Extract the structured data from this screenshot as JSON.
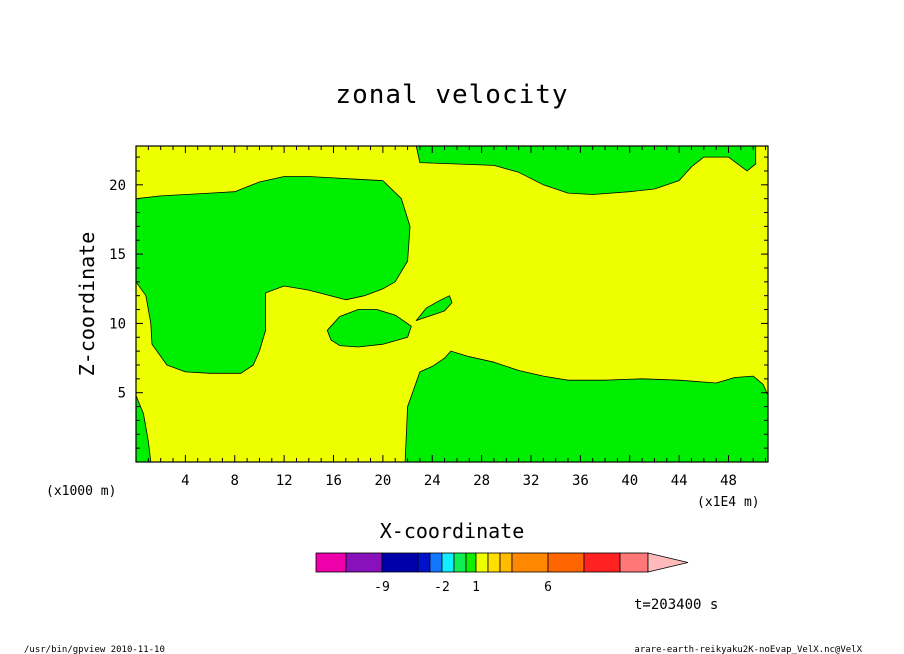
{
  "chart_data": {
    "type": "heatmap",
    "title": "zonal velocity",
    "xlabel": "X-coordinate",
    "ylabel": "Z-coordinate",
    "x_unit": "(x1E4 m)",
    "y_unit": "(x1000 m)",
    "xlim": [
      0,
      51.2
    ],
    "ylim": [
      0,
      22.8
    ],
    "x_ticks": [
      4,
      8,
      12,
      16,
      20,
      24,
      28,
      32,
      36,
      40,
      44,
      48
    ],
    "y_ticks": [
      5,
      10,
      15,
      20
    ],
    "colorbar": {
      "colors": [
        "#ee00aa",
        "#8811bb",
        "#0000aa",
        "#0011cc",
        "#1177ff",
        "#11eeff",
        "#11ee55",
        "#11ee00",
        "#eeff00",
        "#ffdd00",
        "#ffbb00",
        "#ff8800",
        "#ff6600",
        "#ff2222",
        "#ff1111",
        "#ff7777",
        "#ffbbbb"
      ],
      "tick_labels": [
        {
          "label": "-9",
          "at_color_index": 1
        },
        {
          "label": "-2",
          "at_color_index": 4
        },
        {
          "label": "1",
          "at_color_index": 7
        },
        {
          "label": "6",
          "at_color_index": 11
        }
      ]
    },
    "field_colors": {
      "positive_weak": "#eeff00",
      "negative_weak": "#00ee00"
    },
    "regions": [
      {
        "value_class": "negative_weak",
        "outline": [
          [
            0,
            19
          ],
          [
            2,
            19.2
          ],
          [
            6,
            19.4
          ],
          [
            8,
            19.5
          ],
          [
            10,
            20.2
          ],
          [
            12,
            20.6
          ],
          [
            14,
            20.6
          ],
          [
            16,
            20.5
          ],
          [
            18,
            20.4
          ],
          [
            20,
            20.3
          ],
          [
            21.5,
            19
          ],
          [
            22.2,
            17
          ],
          [
            22,
            14.5
          ],
          [
            21,
            13
          ],
          [
            20,
            12.5
          ],
          [
            18.5,
            12
          ],
          [
            17,
            11.7
          ],
          [
            14,
            12.4
          ],
          [
            12,
            12.7
          ],
          [
            10.5,
            12.2
          ],
          [
            10.5,
            9.5
          ],
          [
            10,
            8
          ],
          [
            9.5,
            7
          ],
          [
            8.5,
            6.4
          ],
          [
            6,
            6.4
          ],
          [
            4,
            6.5
          ],
          [
            2.5,
            7
          ],
          [
            1.3,
            8.5
          ],
          [
            1.2,
            10
          ],
          [
            0.8,
            12
          ],
          [
            0,
            13
          ]
        ]
      },
      {
        "value_class": "negative_weak",
        "outline": [
          [
            15.5,
            9.5
          ],
          [
            16.5,
            10.5
          ],
          [
            18,
            11
          ],
          [
            19.5,
            11
          ],
          [
            21,
            10.6
          ],
          [
            22.3,
            9.8
          ],
          [
            22,
            9
          ],
          [
            20,
            8.5
          ],
          [
            18,
            8.3
          ],
          [
            16.5,
            8.4
          ],
          [
            15.8,
            8.8
          ]
        ]
      },
      {
        "value_class": "negative_weak",
        "outline": [
          [
            22.7,
            10.2
          ],
          [
            23.5,
            11.1
          ],
          [
            24.5,
            11.6
          ],
          [
            25.4,
            12
          ],
          [
            25.6,
            11.5
          ],
          [
            25,
            10.9
          ],
          [
            24,
            10.6
          ],
          [
            23,
            10.3
          ]
        ]
      },
      {
        "value_class": "negative_weak",
        "outline": [
          [
            22.7,
            22.8
          ],
          [
            23,
            21.6
          ],
          [
            26,
            21.5
          ],
          [
            29,
            21.4
          ],
          [
            31,
            20.9
          ],
          [
            33,
            20
          ],
          [
            35,
            19.4
          ],
          [
            37,
            19.3
          ],
          [
            40,
            19.5
          ],
          [
            42,
            19.7
          ],
          [
            44,
            20.3
          ],
          [
            45,
            21.3
          ],
          [
            46,
            22
          ],
          [
            48,
            22
          ],
          [
            49.5,
            21
          ],
          [
            50.2,
            21.5
          ],
          [
            50.2,
            22.8
          ]
        ]
      },
      {
        "value_class": "negative_weak",
        "outline": [
          [
            21.8,
            0
          ],
          [
            22,
            4
          ],
          [
            23,
            6.5
          ],
          [
            24,
            6.9
          ],
          [
            25,
            7.5
          ],
          [
            25.5,
            8
          ],
          [
            27,
            7.6
          ],
          [
            29,
            7.2
          ],
          [
            31,
            6.6
          ],
          [
            33,
            6.2
          ],
          [
            35,
            5.9
          ],
          [
            38,
            5.9
          ],
          [
            41,
            6
          ],
          [
            44,
            5.9
          ],
          [
            47,
            5.7
          ],
          [
            48.5,
            6.1
          ],
          [
            50,
            6.2
          ],
          [
            50.8,
            5.6
          ],
          [
            51.2,
            4.8
          ],
          [
            51.2,
            0
          ]
        ]
      },
      {
        "value_class": "negative_weak",
        "outline": [
          [
            0,
            4.8
          ],
          [
            0.6,
            3.5
          ],
          [
            1,
            1.5
          ],
          [
            1.2,
            0
          ],
          [
            0,
            0
          ]
        ]
      }
    ]
  },
  "time_label": "t=203400 s",
  "footer_left": "/usr/bin/gpview   2010-11-10",
  "footer_right": "arare-earth-reikyaku2K-noEvap_VelX.nc@VelX"
}
